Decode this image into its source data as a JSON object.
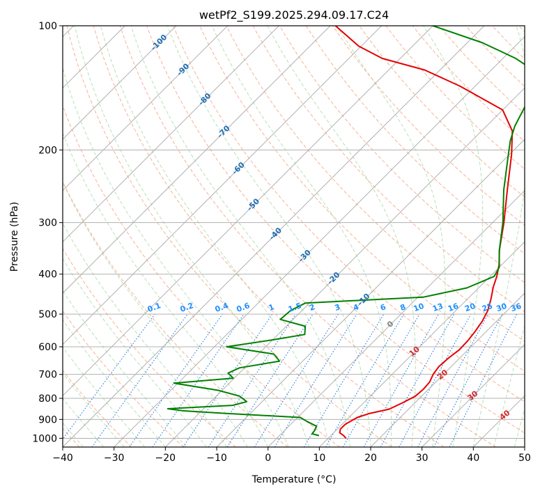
{
  "chart_data": {
    "type": "skew-t",
    "title": "wetPf2_S199.2025.294.09.17.C24",
    "xlabel": "Temperature (°C)",
    "ylabel": "Pressure (hPa)",
    "xlim": [
      -40,
      50
    ],
    "ylim_hpa": [
      1050,
      100
    ],
    "y_scale": "log",
    "grid": true,
    "x_ticks": [
      "−40",
      "−30",
      "−20",
      "−10",
      "0",
      "10",
      "20",
      "30",
      "40",
      "50"
    ],
    "x_tick_values": [
      -40,
      -30,
      -20,
      -10,
      0,
      10,
      20,
      30,
      40,
      50
    ],
    "y_ticks": [
      "100",
      "200",
      "300",
      "400",
      "500",
      "600",
      "700",
      "800",
      "900",
      "1000"
    ],
    "y_tick_values": [
      100,
      200,
      300,
      400,
      500,
      600,
      700,
      800,
      900,
      1000
    ],
    "colors": {
      "temperature": "#e60000",
      "dewpoint": "#008000",
      "dry_adiabat": "#f4a582",
      "moist_adiabat": "#a6d8a6",
      "mixing_ratio": "#1f77e0",
      "isotherm": "#7f7f7f",
      "isotherm_labels": "#1f6eb4",
      "mixing_labels": "#1e90ff",
      "wetbulb_labels": "#d62728"
    },
    "series": [
      {
        "name": "temperature",
        "points": [
          [
            13.5,
            1000
          ],
          [
            12.5,
            985
          ],
          [
            11.2,
            970
          ],
          [
            10.6,
            950
          ],
          [
            10.6,
            925
          ],
          [
            11.6,
            890
          ],
          [
            13.3,
            870
          ],
          [
            16.2,
            850
          ],
          [
            17.6,
            820
          ],
          [
            18.8,
            790
          ],
          [
            19.0,
            760
          ],
          [
            18.8,
            730
          ],
          [
            18.0,
            700
          ],
          [
            17.6,
            670
          ],
          [
            17.8,
            640
          ],
          [
            18.3,
            610
          ],
          [
            18.2,
            580
          ],
          [
            17.8,
            550
          ],
          [
            17.2,
            520
          ],
          [
            16.2,
            490
          ],
          [
            14.6,
            460
          ],
          [
            12.7,
            430
          ],
          [
            11.3,
            405
          ],
          [
            9.5,
            380
          ],
          [
            6.7,
            350
          ],
          [
            2.2,
            300
          ],
          [
            -3.5,
            250
          ],
          [
            -9.6,
            205
          ],
          [
            -14.0,
            180
          ],
          [
            -20.0,
            160
          ],
          [
            -33.0,
            140
          ],
          [
            -43.0,
            128
          ],
          [
            -53.5,
            120
          ],
          [
            -60.5,
            112
          ],
          [
            -69.0,
            100
          ]
        ]
      },
      {
        "name": "dewpoint",
        "points": [
          [
            7.7,
            985
          ],
          [
            6.0,
            975
          ],
          [
            5.9,
            960
          ],
          [
            5.4,
            935
          ],
          [
            2.6,
            910
          ],
          [
            0.5,
            890
          ],
          [
            -15.0,
            870
          ],
          [
            -23.5,
            858
          ],
          [
            -27.0,
            848
          ],
          [
            -15.0,
            832
          ],
          [
            -13.0,
            815
          ],
          [
            -15.5,
            790
          ],
          [
            -20.8,
            765
          ],
          [
            -30.8,
            735
          ],
          [
            -20.2,
            715
          ],
          [
            -22.2,
            695
          ],
          [
            -21.0,
            675
          ],
          [
            -14.5,
            650
          ],
          [
            -17.0,
            625
          ],
          [
            -27.6,
            600
          ],
          [
            -20.2,
            578
          ],
          [
            -14.8,
            560
          ],
          [
            -16.3,
            535
          ],
          [
            -22.5,
            515
          ],
          [
            -22.2,
            490
          ],
          [
            -20.8,
            470
          ],
          [
            1.0,
            455
          ],
          [
            7.7,
            432
          ],
          [
            10.8,
            405
          ],
          [
            10.0,
            385
          ],
          [
            6.7,
            350
          ],
          [
            2.0,
            300
          ],
          [
            -4.2,
            250
          ],
          [
            -9.5,
            210
          ],
          [
            -12.5,
            190
          ],
          [
            -14.5,
            175
          ],
          [
            -16.0,
            160
          ],
          [
            -17.6,
            145
          ],
          [
            -20.5,
            130
          ],
          [
            -27.5,
            120
          ],
          [
            -37.0,
            110
          ],
          [
            -50.0,
            100
          ]
        ]
      }
    ],
    "isotherm_labels": [
      {
        "text": "-100",
        "t": -100,
        "p": 110
      },
      {
        "text": "-90",
        "t": -90,
        "p": 128
      },
      {
        "text": "-80",
        "t": -80,
        "p": 151
      },
      {
        "text": "-70",
        "t": -70,
        "p": 181
      },
      {
        "text": "-60",
        "t": -60,
        "p": 222
      },
      {
        "text": "-50",
        "t": -50,
        "p": 272
      },
      {
        "text": "-40",
        "t": -40,
        "p": 320
      },
      {
        "text": "-30",
        "t": -30,
        "p": 362
      },
      {
        "text": "-20",
        "t": -20,
        "p": 410
      },
      {
        "text": "-10",
        "t": -10,
        "p": 462
      },
      {
        "text": "0",
        "t": 0,
        "p": 530
      }
    ],
    "mixing_ratio_labels": [
      "0.1",
      "0.2",
      "0.4",
      "0.6",
      "1",
      "1.5",
      "2",
      "3",
      "4",
      "6",
      "8",
      "10",
      "13",
      "16",
      "20",
      "25",
      "30",
      "36"
    ],
    "mixing_ratio_values": [
      0.1,
      0.2,
      0.4,
      0.6,
      1,
      1.5,
      2,
      3,
      4,
      6,
      8,
      10,
      13,
      16,
      20,
      25,
      30,
      36
    ],
    "wetbulb_labels": [
      {
        "text": "10",
        "t": 10,
        "p": 617
      },
      {
        "text": "20",
        "t": 20,
        "p": 702
      },
      {
        "text": "30",
        "t": 30,
        "p": 790
      },
      {
        "text": "40",
        "t": 40,
        "p": 880
      }
    ]
  }
}
